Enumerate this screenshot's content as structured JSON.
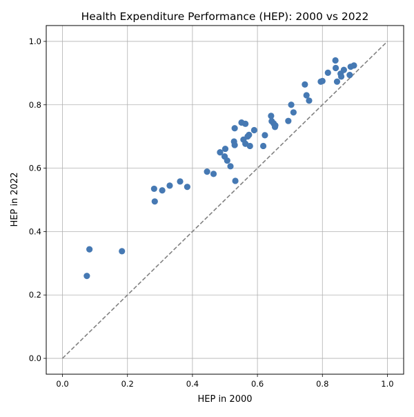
{
  "chart_data": {
    "type": "scatter",
    "title": "Health Expenditure Performance (HEP): 2000 vs 2022",
    "xlabel": "HEP in 2000",
    "ylabel": "HEP in 2022",
    "xlim": [
      -0.05,
      1.05
    ],
    "ylim": [
      -0.05,
      1.05
    ],
    "xticks": [
      "0.0",
      "0.2",
      "0.4",
      "0.6",
      "0.8",
      "1.0"
    ],
    "yticks": [
      "0.0",
      "0.2",
      "0.4",
      "0.6",
      "0.8",
      "1.0"
    ],
    "grid": true,
    "reference_line": {
      "x": [
        0,
        1
      ],
      "y": [
        0,
        1
      ],
      "style": "dashed",
      "color": "#808080"
    },
    "point_color": "#4679b3",
    "points": [
      [
        0.075,
        0.26
      ],
      [
        0.083,
        0.344
      ],
      [
        0.183,
        0.338
      ],
      [
        0.282,
        0.535
      ],
      [
        0.284,
        0.495
      ],
      [
        0.307,
        0.53
      ],
      [
        0.33,
        0.545
      ],
      [
        0.362,
        0.558
      ],
      [
        0.384,
        0.541
      ],
      [
        0.445,
        0.589
      ],
      [
        0.465,
        0.582
      ],
      [
        0.485,
        0.65
      ],
      [
        0.499,
        0.637
      ],
      [
        0.501,
        0.661
      ],
      [
        0.507,
        0.624
      ],
      [
        0.517,
        0.606
      ],
      [
        0.528,
        0.684
      ],
      [
        0.53,
        0.673
      ],
      [
        0.53,
        0.726
      ],
      [
        0.532,
        0.56
      ],
      [
        0.551,
        0.744
      ],
      [
        0.557,
        0.69
      ],
      [
        0.563,
        0.74
      ],
      [
        0.563,
        0.677
      ],
      [
        0.57,
        0.7
      ],
      [
        0.574,
        0.705
      ],
      [
        0.577,
        0.67
      ],
      [
        0.59,
        0.72
      ],
      [
        0.618,
        0.67
      ],
      [
        0.623,
        0.704
      ],
      [
        0.642,
        0.765
      ],
      [
        0.644,
        0.748
      ],
      [
        0.65,
        0.741
      ],
      [
        0.654,
        0.73
      ],
      [
        0.655,
        0.735
      ],
      [
        0.695,
        0.749
      ],
      [
        0.704,
        0.8
      ],
      [
        0.711,
        0.776
      ],
      [
        0.746,
        0.864
      ],
      [
        0.751,
        0.83
      ],
      [
        0.759,
        0.813
      ],
      [
        0.795,
        0.873
      ],
      [
        0.8,
        0.875
      ],
      [
        0.817,
        0.901
      ],
      [
        0.84,
        0.94
      ],
      [
        0.841,
        0.916
      ],
      [
        0.845,
        0.873
      ],
      [
        0.856,
        0.898
      ],
      [
        0.858,
        0.889
      ],
      [
        0.866,
        0.91
      ],
      [
        0.884,
        0.894
      ],
      [
        0.887,
        0.92
      ],
      [
        0.897,
        0.924
      ]
    ]
  }
}
